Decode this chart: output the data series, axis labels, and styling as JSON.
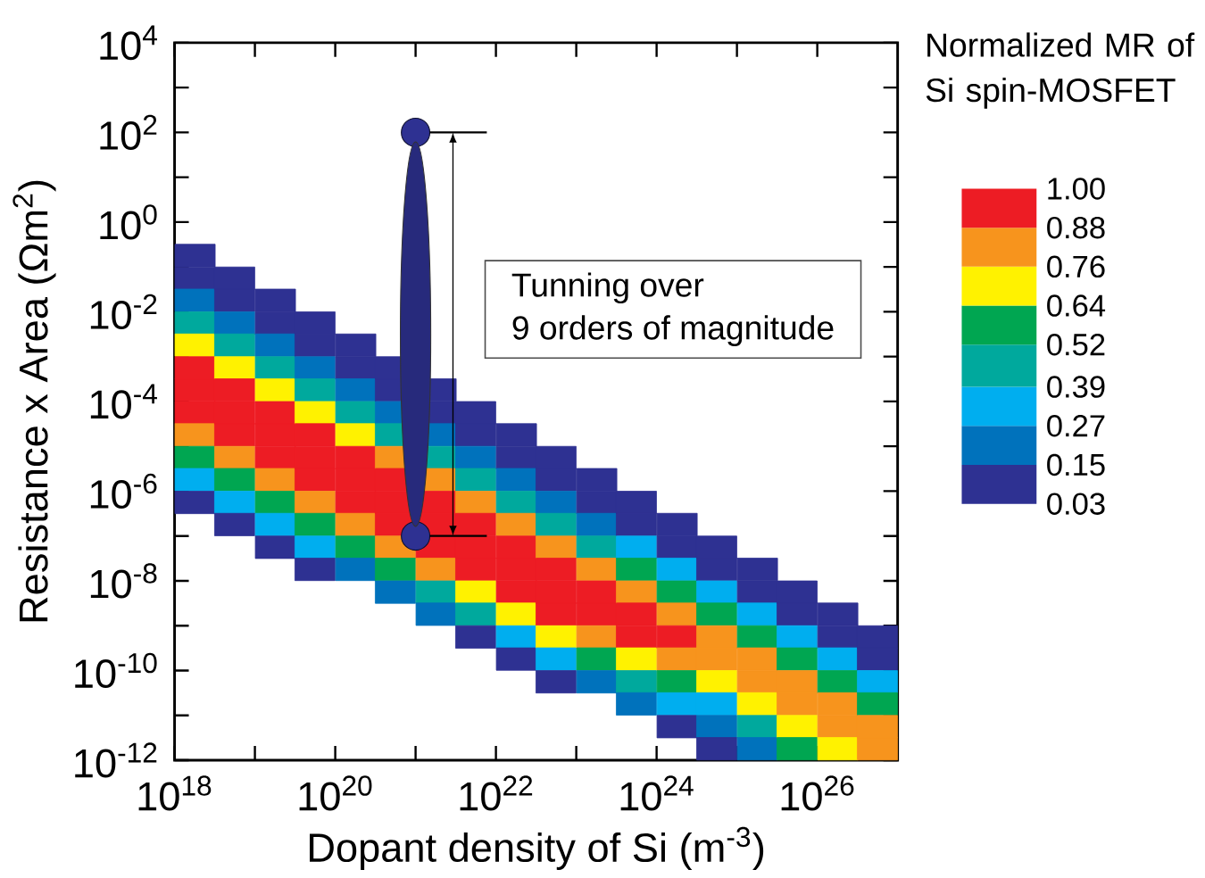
{
  "chart_data": {
    "type": "scatter",
    "xlabel": "Dopant density of Si (m$^{-3}$)",
    "ylabel": "Resistance x Area (Ωm$^{2}$)",
    "clabel": "Normalized MR of Si spin-MOSFET",
    "annotations": [
      "Tunning over",
      "9 orders of magnitude"
    ],
    "log": "xy",
    "xlim": [
      1e+18,
      1e+27
    ],
    "ylim": [
      1e-12,
      10000.0
    ],
    "xticks": [
      {
        "value": 1e+18,
        "label": "10$^{18}$"
      },
      {
        "value": 1e+19,
        "label": null
      },
      {
        "value": 1e+20,
        "label": "10$^{20}$"
      },
      {
        "value": 1e+21,
        "label": null
      },
      {
        "value": 1e+22,
        "label": "10$^{22}$"
      },
      {
        "value": 1e+23,
        "label": null
      },
      {
        "value": 1e+24,
        "label": "10$^{24}$"
      },
      {
        "value": 1e+25,
        "label": null
      },
      {
        "value": 1e+26,
        "label": "10$^{26}$"
      }
    ],
    "yticks": [
      {
        "value": 10000.0,
        "label": "10$^{4}$"
      },
      {
        "value": 1000.0,
        "label": null
      },
      {
        "value": 100.0,
        "label": "10$^{2}$"
      },
      {
        "value": 10.0,
        "label": null
      },
      {
        "value": 1,
        "label": "10$^{0}$"
      },
      {
        "value": 0.1,
        "label": null
      },
      {
        "value": 0.01,
        "label": "10$^{-2}$"
      },
      {
        "value": 0.001,
        "label": null
      },
      {
        "value": 0.0001,
        "label": "10$^{-4}$"
      },
      {
        "value": 1e-05,
        "label": null
      },
      {
        "value": 1e-06,
        "label": "10$^{-6}$"
      },
      {
        "value": 1e-07,
        "label": null
      },
      {
        "value": 1e-08,
        "label": "10$^{-8}$"
      },
      {
        "value": 1e-09,
        "label": null
      },
      {
        "value": 1e-10,
        "label": "10$^{-10}$"
      },
      {
        "value": 1e-11,
        "label": null
      },
      {
        "value": 1e-12,
        "label": "10$^{-12}$"
      }
    ],
    "clim": [
      0.03,
      1
    ],
    "cticks": [
      {
        "value": 1,
        "label": "1.00"
      },
      {
        "value": 0.88,
        "label": "0.88"
      },
      {
        "value": 0.76,
        "label": "0.76"
      },
      {
        "value": 0.64,
        "label": "0.64"
      },
      {
        "value": 0.52,
        "label": "0.52"
      },
      {
        "value": 0.39,
        "label": "0.39"
      },
      {
        "value": 0.27,
        "label": "0.27"
      },
      {
        "value": 0.15,
        "label": "0.15"
      },
      {
        "value": 0.03,
        "label": "0.03"
      }
    ],
    "series": [
      {
        "marker": "square",
        "x": [
          1.8e+18,
          1.8e+18,
          1.8e+18,
          1.8e+18,
          1.8e+18,
          1.8e+18,
          1.8e+18,
          1.8e+18,
          1.8e+18,
          1.8e+18,
          1.8e+18,
          1.8e+18
        ],
        "values": [
          0.18,
          0.056,
          0.018,
          0.0056,
          0.0018,
          0.00056,
          0.00018,
          5.6e-05,
          1.8e-05,
          5.6e-06,
          1.8e-06,
          5.6e-07
        ],
        "colors": [
          "#2e3192",
          "#2e3192",
          "#0072bc",
          "#00a99d",
          "#fff200",
          "#ed1c24",
          "#ed1c24",
          "#ed1c24",
          "#f7941d",
          "#00a651",
          "#00aeef",
          "#2e3192"
        ]
      },
      {
        "marker": "square",
        "x": [
          5.6e+18,
          5.6e+18,
          5.6e+18,
          5.6e+18,
          5.6e+18,
          5.6e+18,
          5.6e+18,
          5.6e+18,
          5.6e+18,
          5.6e+18,
          5.6e+18,
          5.6e+18
        ],
        "values": [
          0.056,
          0.018,
          0.0056,
          0.0018,
          0.00056,
          0.00018,
          5.6e-05,
          1.8e-05,
          5.6e-06,
          1.8e-06,
          5.6e-07,
          1.8e-07
        ],
        "colors": [
          "#2e3192",
          "#2e3192",
          "#0072bc",
          "#00a99d",
          "#fff200",
          "#ed1c24",
          "#ed1c24",
          "#ed1c24",
          "#f7941d",
          "#00a651",
          "#00aeef",
          "#2e3192"
        ]
      },
      {
        "marker": "square",
        "x": [
          1.8e+19,
          1.8e+19,
          1.8e+19,
          1.8e+19,
          1.8e+19,
          1.8e+19,
          1.8e+19,
          1.8e+19,
          1.8e+19,
          1.8e+19,
          1.8e+19,
          1.8e+19
        ],
        "values": [
          0.018,
          0.0056,
          0.0018,
          0.00056,
          0.00018,
          5.6e-05,
          1.8e-05,
          5.6e-06,
          1.8e-06,
          5.6e-07,
          1.8e-07,
          5.6e-08
        ],
        "colors": [
          "#2e3192",
          "#2e3192",
          "#0072bc",
          "#00a99d",
          "#fff200",
          "#ed1c24",
          "#ed1c24",
          "#ed1c24",
          "#f7941d",
          "#00a651",
          "#00aeef",
          "#2e3192"
        ]
      },
      {
        "marker": "square",
        "x": [
          5.6e+19,
          5.6e+19,
          5.6e+19,
          5.6e+19,
          5.6e+19,
          5.6e+19,
          5.6e+19,
          5.6e+19,
          5.6e+19,
          5.6e+19,
          5.6e+19,
          5.6e+19
        ],
        "values": [
          0.0056,
          0.0018,
          0.00056,
          0.00018,
          5.6e-05,
          1.8e-05,
          5.6e-06,
          1.8e-06,
          5.6e-07,
          1.8e-07,
          5.6e-08,
          1.8e-08
        ],
        "colors": [
          "#2e3192",
          "#2e3192",
          "#0072bc",
          "#00a99d",
          "#fff200",
          "#ed1c24",
          "#ed1c24",
          "#ed1c24",
          "#f7941d",
          "#00a651",
          "#00aeef",
          "#2e3192"
        ]
      },
      {
        "marker": "square",
        "x": [
          1.8e+20,
          1.8e+20,
          1.8e+20,
          1.8e+20,
          1.8e+20,
          1.8e+20,
          1.8e+20,
          1.8e+20,
          1.8e+20,
          1.8e+20,
          1.8e+20
        ],
        "values": [
          0.0018,
          0.00056,
          0.00018,
          5.6e-05,
          1.8e-05,
          5.6e-06,
          1.8e-06,
          5.6e-07,
          1.8e-07,
          5.6e-08,
          1.8e-08
        ],
        "colors": [
          "#2e3192",
          "#2e3192",
          "#0072bc",
          "#00a99d",
          "#fff200",
          "#ed1c24",
          "#ed1c24",
          "#ed1c24",
          "#f7941d",
          "#00a651",
          "#0072bc"
        ]
      },
      {
        "marker": "square",
        "x": [
          5.6e+20,
          5.6e+20,
          5.6e+20,
          5.6e+20,
          5.6e+20,
          5.6e+20,
          5.6e+20,
          5.6e+20,
          5.6e+20,
          5.6e+20,
          5.6e+20
        ],
        "values": [
          0.00056,
          0.00018,
          5.6e-05,
          1.8e-05,
          5.6e-06,
          1.8e-06,
          5.6e-07,
          1.8e-07,
          5.6e-08,
          1.8e-08,
          5.6e-09
        ],
        "colors": [
          "#2e3192",
          "#2e3192",
          "#0072bc",
          "#00a99d",
          "#f7941d",
          "#ed1c24",
          "#ed1c24",
          "#ed1c24",
          "#f7941d",
          "#00a651",
          "#0072bc"
        ]
      },
      {
        "marker": "square",
        "x": [
          1.8e+21,
          1.8e+21,
          1.8e+21,
          1.8e+21,
          1.8e+21,
          1.8e+21,
          1.8e+21,
          1.8e+21,
          1.8e+21,
          1.8e+21,
          1.8e+21
        ],
        "values": [
          0.00018,
          5.6e-05,
          1.8e-05,
          5.6e-06,
          1.8e-06,
          5.6e-07,
          1.8e-07,
          5.6e-08,
          1.8e-08,
          5.6e-09,
          1.8e-09
        ],
        "colors": [
          "#2e3192",
          "#2e3192",
          "#0072bc",
          "#00a99d",
          "#f7941d",
          "#ed1c24",
          "#ed1c24",
          "#ed1c24",
          "#f7941d",
          "#00a99d",
          "#0072bc"
        ]
      },
      {
        "marker": "square",
        "x": [
          5.6e+21,
          5.6e+21,
          5.6e+21,
          5.6e+21,
          5.6e+21,
          5.6e+21,
          5.6e+21,
          5.6e+21,
          5.6e+21,
          5.6e+21,
          5.6e+21
        ],
        "values": [
          5.6e-05,
          1.8e-05,
          5.6e-06,
          1.8e-06,
          5.6e-07,
          1.8e-07,
          5.6e-08,
          1.8e-08,
          5.6e-09,
          1.8e-09,
          5.6e-10
        ],
        "colors": [
          "#2e3192",
          "#2e3192",
          "#0072bc",
          "#00a99d",
          "#f7941d",
          "#ed1c24",
          "#ed1c24",
          "#ed1c24",
          "#fff200",
          "#00a99d",
          "#2e3192"
        ]
      },
      {
        "marker": "square",
        "x": [
          1.8e+22,
          1.8e+22,
          1.8e+22,
          1.8e+22,
          1.8e+22,
          1.8e+22,
          1.8e+22,
          1.8e+22,
          1.8e+22,
          1.8e+22,
          1.8e+22
        ],
        "values": [
          1.8e-05,
          5.6e-06,
          1.8e-06,
          5.6e-07,
          1.8e-07,
          5.6e-08,
          1.8e-08,
          5.6e-09,
          1.8e-09,
          5.6e-10,
          1.8e-10
        ],
        "colors": [
          "#2e3192",
          "#2e3192",
          "#0072bc",
          "#00a99d",
          "#f7941d",
          "#ed1c24",
          "#ed1c24",
          "#ed1c24",
          "#fff200",
          "#00aeef",
          "#2e3192"
        ]
      },
      {
        "marker": "square",
        "x": [
          5.6e+22,
          5.6e+22,
          5.6e+22,
          5.6e+22,
          5.6e+22,
          5.6e+22,
          5.6e+22,
          5.6e+22,
          5.6e+22,
          5.6e+22,
          5.6e+22
        ],
        "values": [
          5.6e-06,
          1.8e-06,
          5.6e-07,
          1.8e-07,
          5.6e-08,
          1.8e-08,
          5.6e-09,
          1.8e-09,
          5.6e-10,
          1.8e-10,
          5.6e-11
        ],
        "colors": [
          "#2e3192",
          "#2e3192",
          "#0072bc",
          "#00a99d",
          "#f7941d",
          "#ed1c24",
          "#ed1c24",
          "#ed1c24",
          "#fff200",
          "#00aeef",
          "#2e3192"
        ]
      },
      {
        "marker": "square",
        "x": [
          1.8e+23,
          1.8e+23,
          1.8e+23,
          1.8e+23,
          1.8e+23,
          1.8e+23,
          1.8e+23,
          1.8e+23,
          1.8e+23,
          1.8e+23
        ],
        "values": [
          1.8e-06,
          5.6e-07,
          1.8e-07,
          5.6e-08,
          1.8e-08,
          5.6e-09,
          1.8e-09,
          5.6e-10,
          1.8e-10,
          5.6e-11
        ],
        "colors": [
          "#2e3192",
          "#2e3192",
          "#0072bc",
          "#00a99d",
          "#f7941d",
          "#ed1c24",
          "#ed1c24",
          "#f7941d",
          "#00a651",
          "#0072bc"
        ]
      },
      {
        "marker": "square",
        "x": [
          5.6e+23,
          5.6e+23,
          5.6e+23,
          5.6e+23,
          5.6e+23,
          5.6e+23,
          5.6e+23,
          5.6e+23,
          5.6e+23,
          5.6e+23
        ],
        "values": [
          5.6e-07,
          1.8e-07,
          5.6e-08,
          1.8e-08,
          5.6e-09,
          1.8e-09,
          5.6e-10,
          1.8e-10,
          5.6e-11,
          1.8e-11
        ],
        "colors": [
          "#2e3192",
          "#2e3192",
          "#00aeef",
          "#00a651",
          "#f7941d",
          "#ed1c24",
          "#ed1c24",
          "#fff200",
          "#00a99d",
          "#0072bc"
        ]
      },
      {
        "marker": "square",
        "x": [
          1.8e+24,
          1.8e+24,
          1.8e+24,
          1.8e+24,
          1.8e+24,
          1.8e+24,
          1.8e+24,
          1.8e+24,
          1.8e+24,
          1.8e+24
        ],
        "values": [
          1.8e-07,
          5.6e-08,
          1.8e-08,
          5.6e-09,
          1.8e-09,
          5.6e-10,
          1.8e-10,
          5.6e-11,
          1.8e-11,
          5.6e-12
        ],
        "colors": [
          "#2e3192",
          "#2e3192",
          "#00aeef",
          "#00a651",
          "#f7941d",
          "#ed1c24",
          "#f7941d",
          "#00a651",
          "#00aeef",
          "#2e3192"
        ]
      },
      {
        "marker": "square",
        "x": [
          5.6e+24,
          5.6e+24,
          5.6e+24,
          5.6e+24,
          5.6e+24,
          5.6e+24,
          5.6e+24,
          5.6e+24,
          5.6e+24,
          5.6e+24
        ],
        "values": [
          5.6e-08,
          1.8e-08,
          5.6e-09,
          1.8e-09,
          5.6e-10,
          1.8e-10,
          5.6e-11,
          1.8e-11,
          5.6e-12,
          1.8e-12
        ],
        "colors": [
          "#2e3192",
          "#2e3192",
          "#00aeef",
          "#00a651",
          "#f7941d",
          "#f7941d",
          "#fff200",
          "#00aeef",
          "#0072bc",
          "#2e3192"
        ]
      },
      {
        "marker": "square",
        "x": [
          1.8e+25,
          1.8e+25,
          1.8e+25,
          1.8e+25,
          1.8e+25,
          1.8e+25,
          1.8e+25,
          1.8e+25,
          1.8e+25
        ],
        "values": [
          1.8e-08,
          5.6e-09,
          1.8e-09,
          5.6e-10,
          1.8e-10,
          5.6e-11,
          1.8e-11,
          5.6e-12,
          1.8e-12
        ],
        "colors": [
          "#2e3192",
          "#2e3192",
          "#00aeef",
          "#00a651",
          "#f7941d",
          "#f7941d",
          "#fff200",
          "#00a99d",
          "#0072bc"
        ]
      },
      {
        "marker": "square",
        "x": [
          5.6e+25,
          5.6e+25,
          5.6e+25,
          5.6e+25,
          5.6e+25,
          5.6e+25,
          5.6e+25,
          5.6e+25
        ],
        "values": [
          5.6e-09,
          1.8e-09,
          5.6e-10,
          1.8e-10,
          5.6e-11,
          1.8e-11,
          5.6e-12,
          1.8e-12
        ],
        "colors": [
          "#2e3192",
          "#2e3192",
          "#00aeef",
          "#00a651",
          "#f7941d",
          "#f7941d",
          "#fff200",
          "#00a651"
        ]
      },
      {
        "marker": "square",
        "x": [
          1.8e+26,
          1.8e+26,
          1.8e+26,
          1.8e+26,
          1.8e+26,
          1.8e+26,
          1.8e+26
        ],
        "values": [
          1.8e-09,
          5.6e-10,
          1.8e-10,
          5.6e-11,
          1.8e-11,
          5.6e-12,
          1.8e-12
        ],
        "colors": [
          "#2e3192",
          "#2e3192",
          "#00aeef",
          "#00a651",
          "#f7941d",
          "#f7941d",
          "#fff200"
        ]
      },
      {
        "marker": "square",
        "x": [
          5.6e+26,
          5.6e+26,
          5.6e+26,
          5.6e+26,
          5.6e+26,
          5.6e+26
        ],
        "values": [
          5.6e-10,
          1.8e-10,
          5.6e-11,
          1.8e-11,
          5.6e-12,
          1.8e-12
        ],
        "colors": [
          "#2e3192",
          "#2e3192",
          "#00aeef",
          "#00a651",
          "#f7941d",
          "#f7941d"
        ]
      },
      {
        "marker": "circle",
        "x": [
          1e+21,
          1e+21
        ],
        "values": [
          100,
          1e-07
        ],
        "color": "#2e3192"
      }
    ]
  }
}
